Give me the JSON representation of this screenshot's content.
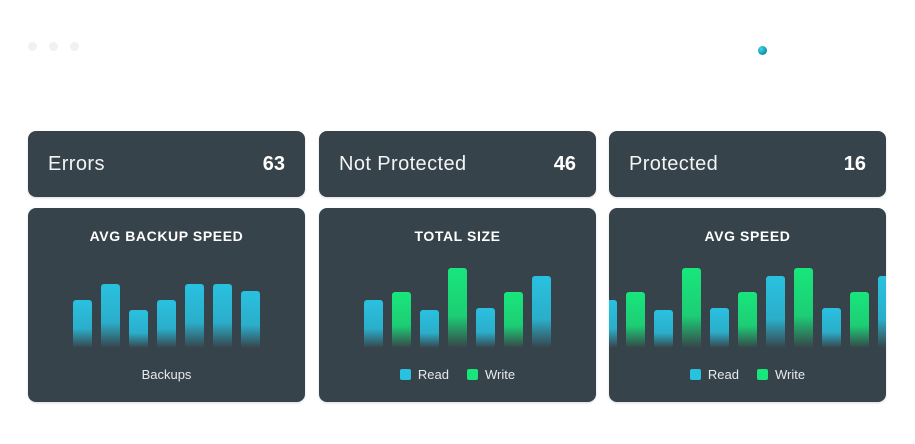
{
  "colors": {
    "read": "#29c1e0",
    "write": "#18e67c",
    "card": "#37434a"
  },
  "stats": [
    {
      "label": "Errors",
      "value": "63"
    },
    {
      "label": "Not Protected",
      "value": "46"
    },
    {
      "label": "Protected",
      "value": "16"
    }
  ],
  "charts": {
    "backup_speed": {
      "title": "AVG BACKUP SPEED",
      "caption": "Backups"
    },
    "total_size": {
      "title": "TOTAL SIZE"
    },
    "avg_speed": {
      "title": "AVG SPEED"
    }
  },
  "legend": {
    "read": "Read",
    "write": "Write"
  },
  "chart_data": [
    {
      "type": "bar",
      "title": "AVG BACKUP SPEED",
      "xlabel": "Backups",
      "series": [
        {
          "values": [
            48,
            64,
            38,
            48,
            64,
            64,
            57
          ]
        }
      ],
      "ylim": [
        0,
        100
      ]
    },
    {
      "type": "bar",
      "title": "TOTAL SIZE",
      "categories_series": [
        "read",
        "write",
        "read",
        "write",
        "read",
        "write",
        "read"
      ],
      "series": [
        {
          "name": "Read",
          "values": [
            48,
            null,
            38,
            null,
            40,
            null,
            72
          ]
        },
        {
          "name": "Write",
          "values": [
            null,
            56,
            null,
            80,
            null,
            56,
            null
          ]
        }
      ],
      "ylim": [
        0,
        100
      ]
    },
    {
      "type": "bar",
      "title": "AVG SPEED",
      "categories_series": [
        "read",
        "write",
        "read",
        "write",
        "read",
        "write",
        "read",
        "write",
        "read",
        "write",
        "read"
      ],
      "series": [
        {
          "name": "Read",
          "values": [
            48,
            null,
            38,
            null,
            40,
            null,
            72,
            null,
            40,
            null,
            72
          ]
        },
        {
          "name": "Write",
          "values": [
            null,
            56,
            null,
            80,
            null,
            56,
            null,
            80,
            null,
            56,
            null
          ]
        }
      ],
      "ylim": [
        0,
        100
      ]
    }
  ]
}
